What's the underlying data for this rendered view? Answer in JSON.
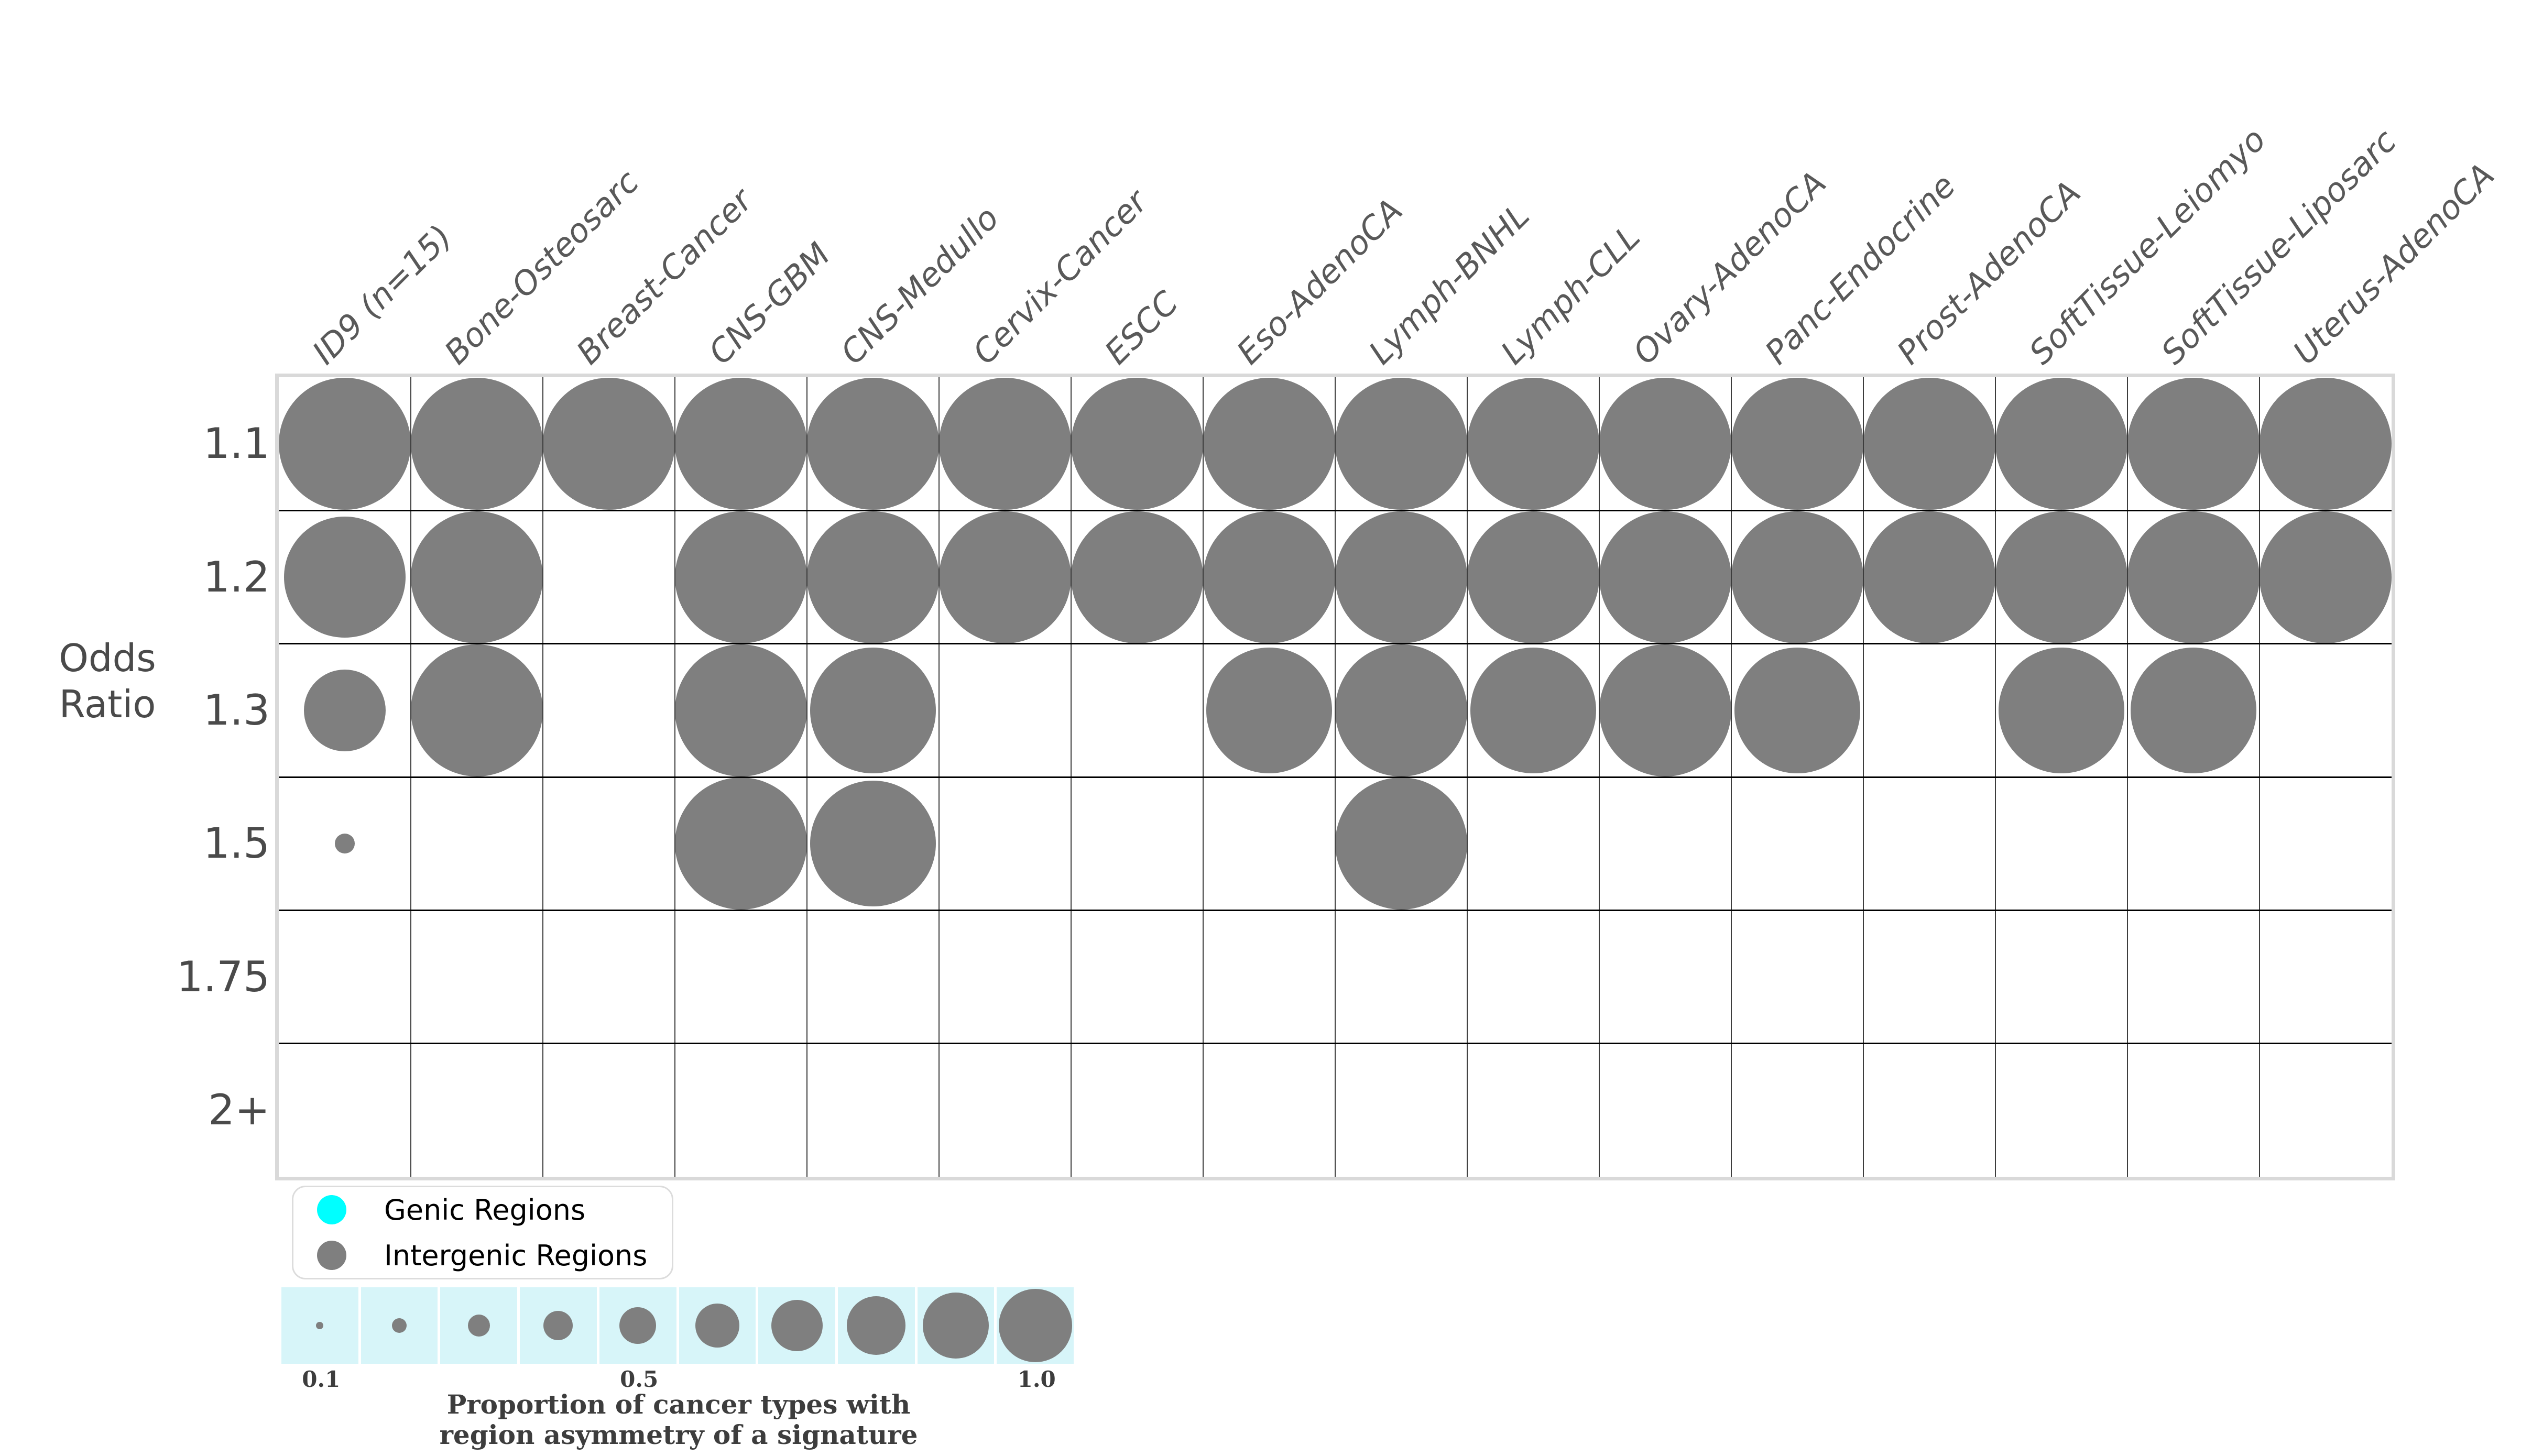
{
  "colors": {
    "bubble_gray": "#7f7f7f",
    "genic_cyan": "#00ffff",
    "grid_vline": "#3d3d3d",
    "grid_hline": "#000000",
    "grid_outer_border": "#d9d9d9",
    "column_header_text": "#595959",
    "row_label_text": "#4a4a4a",
    "size_cell_bg": "#d7f5f9",
    "caption_text": "#3d3d3d"
  },
  "y_axis": {
    "label_lines": [
      "Odds",
      "Ratio"
    ]
  },
  "chart_data": {
    "type": "bubble",
    "title": "",
    "xlabel": "",
    "ylabel": "Odds Ratio",
    "columns": [
      "ID9 (n=15)",
      "Bone-Osteosarc",
      "Breast-Cancer",
      "CNS-GBM",
      "CNS-Medullo",
      "Cervix-Cancer",
      "ESCC",
      "Eso-AdenoCA",
      "Lymph-BNHL",
      "Lymph-CLL",
      "Ovary-AdenoCA",
      "Panc-Endocrine",
      "Prost-AdenoCA",
      "SoftTissue-Leiomyo",
      "SoftTissue-Liposarc",
      "Uterus-AdenoCA"
    ],
    "rows": [
      "1.1",
      "1.2",
      "1.3",
      "1.5",
      "1.75",
      "2+"
    ],
    "size_encoding": "Proportion of cancer types with region asymmetry of a signature (0.1 - 1.0), bubble diameter proportional to value",
    "series_color_meaning": "Intergenic Regions (gray)",
    "values": [
      [
        1,
        1,
        1,
        1,
        1,
        1,
        1,
        1,
        1,
        1,
        1,
        1,
        1,
        1,
        1,
        1
      ],
      [
        0.92,
        1,
        0,
        1,
        1,
        1,
        1,
        1,
        1,
        1,
        1,
        1,
        1,
        1,
        1,
        1
      ],
      [
        0.62,
        1,
        0,
        1,
        0.95,
        0,
        0,
        0.95,
        1,
        0.95,
        1,
        0.95,
        0,
        0.95,
        0.95,
        0
      ],
      [
        0.15,
        0,
        0,
        1,
        0.95,
        0,
        0,
        0,
        1,
        0,
        0,
        0,
        0,
        0,
        0,
        0
      ],
      [
        0,
        0,
        0,
        0,
        0,
        0,
        0,
        0,
        0,
        0,
        0,
        0,
        0,
        0,
        0,
        0
      ],
      [
        0,
        0,
        0,
        0,
        0,
        0,
        0,
        0,
        0,
        0,
        0,
        0,
        0,
        0,
        0,
        0
      ]
    ]
  },
  "legend": {
    "items": [
      {
        "label": "Genic Regions",
        "color": "#00ffff"
      },
      {
        "label": "Intergenic Regions",
        "color": "#7f7f7f"
      }
    ]
  },
  "size_legend": {
    "values": [
      0.1,
      0.2,
      0.3,
      0.4,
      0.5,
      0.6,
      0.7,
      0.8,
      0.9,
      1.0
    ],
    "ticks": [
      {
        "label": "0.1",
        "cell": 1
      },
      {
        "label": "0.5",
        "cell": 5
      },
      {
        "label": "1.0",
        "cell": 10
      }
    ],
    "caption_lines": [
      "Proportion of cancer types with",
      "region asymmetry of a signature"
    ]
  }
}
